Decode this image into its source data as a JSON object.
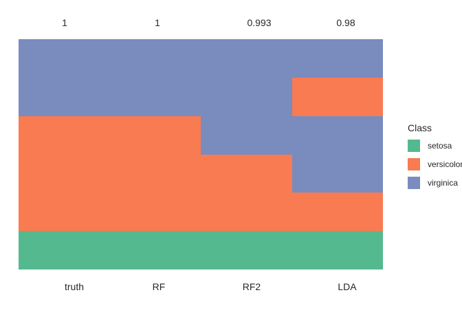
{
  "chart_data": {
    "type": "heatmap",
    "title": "",
    "legend_title": "Class",
    "legend_position": "right",
    "grid": false,
    "classes": [
      {
        "name": "setosa",
        "color": "#55B98F"
      },
      {
        "name": "versicolor",
        "color": "#F87B51"
      },
      {
        "name": "virginica",
        "color": "#7A8BBE"
      }
    ],
    "top_labels": [
      "1",
      "1",
      "0.993",
      "0.98"
    ],
    "x_axis_labels": [
      "truth",
      "RF",
      "RF2",
      "LDA"
    ],
    "columns": [
      {
        "label": "truth",
        "top_label": "1",
        "segments": [
          {
            "class": "virginica",
            "fraction": 0.33333
          },
          {
            "class": "versicolor",
            "fraction": 0.5
          },
          {
            "class": "setosa",
            "fraction": 0.16667
          }
        ]
      },
      {
        "label": "RF",
        "top_label": "1",
        "segments": [
          {
            "class": "virginica",
            "fraction": 0.33333
          },
          {
            "class": "versicolor",
            "fraction": 0.5
          },
          {
            "class": "setosa",
            "fraction": 0.16667
          }
        ]
      },
      {
        "label": "RF2",
        "top_label": "0.993",
        "segments": [
          {
            "class": "virginica",
            "fraction": 0.5
          },
          {
            "class": "versicolor",
            "fraction": 0.33333
          },
          {
            "class": "setosa",
            "fraction": 0.16667
          }
        ]
      },
      {
        "label": "LDA",
        "top_label": "0.98",
        "segments": [
          {
            "class": "virginica",
            "fraction": 0.16667
          },
          {
            "class": "versicolor",
            "fraction": 0.16667
          },
          {
            "class": "virginica",
            "fraction": 0.33333
          },
          {
            "class": "versicolor",
            "fraction": 0.16667
          },
          {
            "class": "setosa",
            "fraction": 0.16667
          }
        ]
      }
    ]
  }
}
